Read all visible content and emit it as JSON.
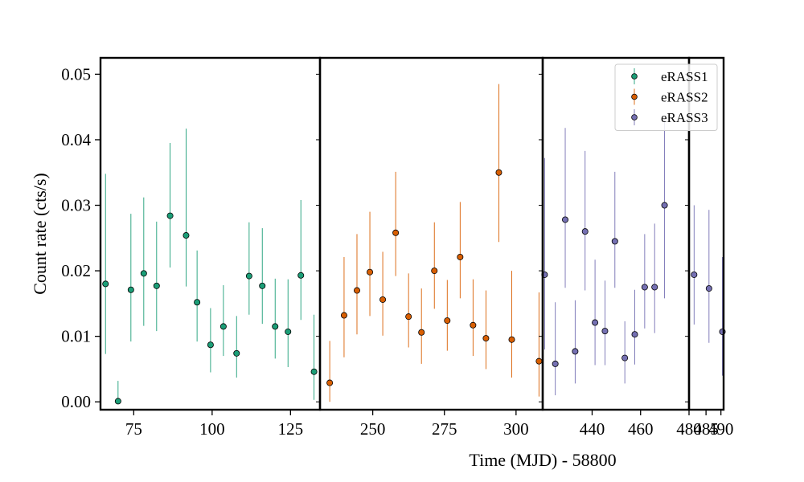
{
  "chart_data": {
    "type": "scatter",
    "title": "",
    "xlabel": "Time (MJD) - 58800",
    "ylabel": "Count rate (cts/s)",
    "ylim": [
      -0.0012,
      0.0525
    ],
    "y_ticks": [
      0.0,
      0.01,
      0.02,
      0.03,
      0.04,
      0.05
    ],
    "y_tick_labels": [
      "0.00",
      "0.01",
      "0.02",
      "0.03",
      "0.04",
      "0.05"
    ],
    "grid": false,
    "legend_position": "top-right",
    "segments": [
      {
        "xlim": [
          64.4,
          134.4
        ],
        "x_ticks": [
          75,
          100,
          125
        ],
        "x_tick_labels": [
          "75",
          "100",
          "125"
        ]
      },
      {
        "xlim": [
          231.6,
          309.3
        ],
        "x_ticks": [
          250,
          275,
          300
        ],
        "x_tick_labels": [
          "250",
          "275",
          "300"
        ]
      },
      {
        "xlim": [
          419.6,
          480.0
        ],
        "x_ticks": [
          440,
          460,
          480
        ],
        "x_tick_labels": [
          "440",
          "460",
          "480"
        ]
      },
      {
        "xlim": [
          479.3,
          490.9
        ],
        "x_ticks": [
          485,
          490
        ],
        "x_tick_labels": [
          "485",
          "490"
        ]
      }
    ],
    "series": [
      {
        "name": "eRASS1",
        "color": "#1b9e77",
        "segment": 0,
        "points": [
          {
            "x": 66.0,
            "y": 0.018,
            "lo": 0.0073,
            "hi": 0.0348
          },
          {
            "x": 70.0,
            "y": 0.0001,
            "lo": 0.0,
            "hi": 0.0032
          },
          {
            "x": 74.1,
            "y": 0.0171,
            "lo": 0.0092,
            "hi": 0.0287
          },
          {
            "x": 78.2,
            "y": 0.0196,
            "lo": 0.0116,
            "hi": 0.0312
          },
          {
            "x": 82.3,
            "y": 0.0177,
            "lo": 0.0108,
            "hi": 0.0275
          },
          {
            "x": 86.6,
            "y": 0.0284,
            "lo": 0.0205,
            "hi": 0.0395
          },
          {
            "x": 91.7,
            "y": 0.0254,
            "lo": 0.0176,
            "hi": 0.0417
          },
          {
            "x": 95.2,
            "y": 0.0152,
            "lo": 0.0092,
            "hi": 0.0231
          },
          {
            "x": 99.5,
            "y": 0.0087,
            "lo": 0.0045,
            "hi": 0.0143
          },
          {
            "x": 103.6,
            "y": 0.0115,
            "lo": 0.007,
            "hi": 0.0178
          },
          {
            "x": 107.8,
            "y": 0.0074,
            "lo": 0.0037,
            "hi": 0.0131
          },
          {
            "x": 111.8,
            "y": 0.0192,
            "lo": 0.0133,
            "hi": 0.0274
          },
          {
            "x": 116.0,
            "y": 0.0177,
            "lo": 0.0119,
            "hi": 0.0265
          },
          {
            "x": 120.1,
            "y": 0.0115,
            "lo": 0.0066,
            "hi": 0.0188
          },
          {
            "x": 124.2,
            "y": 0.0107,
            "lo": 0.0053,
            "hi": 0.0187
          },
          {
            "x": 128.3,
            "y": 0.0193,
            "lo": 0.0125,
            "hi": 0.0308
          },
          {
            "x": 132.5,
            "y": 0.0046,
            "lo": 0.0003,
            "hi": 0.0133
          }
        ]
      },
      {
        "name": "eRASS2",
        "color": "#d95f02",
        "segment": 1,
        "points": [
          {
            "x": 235.0,
            "y": 0.0029,
            "lo": 0.0,
            "hi": 0.0093
          },
          {
            "x": 240.0,
            "y": 0.0132,
            "lo": 0.0068,
            "hi": 0.0221
          },
          {
            "x": 244.5,
            "y": 0.017,
            "lo": 0.0103,
            "hi": 0.0256
          },
          {
            "x": 249.0,
            "y": 0.0198,
            "lo": 0.0131,
            "hi": 0.029
          },
          {
            "x": 253.5,
            "y": 0.0156,
            "lo": 0.0101,
            "hi": 0.0229
          },
          {
            "x": 258.0,
            "y": 0.0258,
            "lo": 0.0192,
            "hi": 0.0351
          },
          {
            "x": 262.5,
            "y": 0.013,
            "lo": 0.0083,
            "hi": 0.0196
          },
          {
            "x": 267.0,
            "y": 0.0106,
            "lo": 0.0058,
            "hi": 0.0173
          },
          {
            "x": 271.5,
            "y": 0.02,
            "lo": 0.0142,
            "hi": 0.0274
          },
          {
            "x": 276.0,
            "y": 0.0124,
            "lo": 0.0078,
            "hi": 0.0186
          },
          {
            "x": 280.5,
            "y": 0.0221,
            "lo": 0.0158,
            "hi": 0.0305
          },
          {
            "x": 285.0,
            "y": 0.0117,
            "lo": 0.007,
            "hi": 0.0187
          },
          {
            "x": 289.5,
            "y": 0.0097,
            "lo": 0.005,
            "hi": 0.017
          },
          {
            "x": 294.0,
            "y": 0.035,
            "lo": 0.0244,
            "hi": 0.0485
          },
          {
            "x": 298.5,
            "y": 0.0095,
            "lo": 0.0037,
            "hi": 0.02
          },
          {
            "x": 308.0,
            "y": 0.0062,
            "lo": 0.0008,
            "hi": 0.0167
          }
        ]
      },
      {
        "name": "eRASS3",
        "color": "#7570b3",
        "segment": 2,
        "points": [
          {
            "x": 420.4,
            "y": 0.0194,
            "lo": 0.008,
            "hi": 0.0372
          },
          {
            "x": 424.8,
            "y": 0.0058,
            "lo": 0.001,
            "hi": 0.0152
          },
          {
            "x": 428.9,
            "y": 0.0278,
            "lo": 0.0174,
            "hi": 0.0418
          },
          {
            "x": 433.0,
            "y": 0.0077,
            "lo": 0.0028,
            "hi": 0.0155
          },
          {
            "x": 437.1,
            "y": 0.026,
            "lo": 0.017,
            "hi": 0.0383
          },
          {
            "x": 441.2,
            "y": 0.0121,
            "lo": 0.0056,
            "hi": 0.0217
          },
          {
            "x": 445.3,
            "y": 0.0108,
            "lo": 0.0056,
            "hi": 0.0185
          },
          {
            "x": 449.4,
            "y": 0.0245,
            "lo": 0.0174,
            "hi": 0.0351
          },
          {
            "x": 453.5,
            "y": 0.0067,
            "lo": 0.0028,
            "hi": 0.0123
          },
          {
            "x": 457.6,
            "y": 0.0103,
            "lo": 0.0057,
            "hi": 0.0171
          },
          {
            "x": 461.7,
            "y": 0.0175,
            "lo": 0.0112,
            "hi": 0.0256
          },
          {
            "x": 465.8,
            "y": 0.0175,
            "lo": 0.0105,
            "hi": 0.0272
          },
          {
            "x": 469.9,
            "y": 0.03,
            "lo": 0.0158,
            "hi": 0.0432
          }
        ]
      },
      {
        "name": "eRASS3",
        "color": "#7570b3",
        "segment": 3,
        "legend": false,
        "points": [
          {
            "x": 481.0,
            "y": 0.0194,
            "lo": 0.0118,
            "hi": 0.03
          },
          {
            "x": 486.0,
            "y": 0.0173,
            "lo": 0.009,
            "hi": 0.0293
          },
          {
            "x": 490.5,
            "y": 0.0107,
            "lo": 0.004,
            "hi": 0.0221
          }
        ]
      }
    ]
  }
}
